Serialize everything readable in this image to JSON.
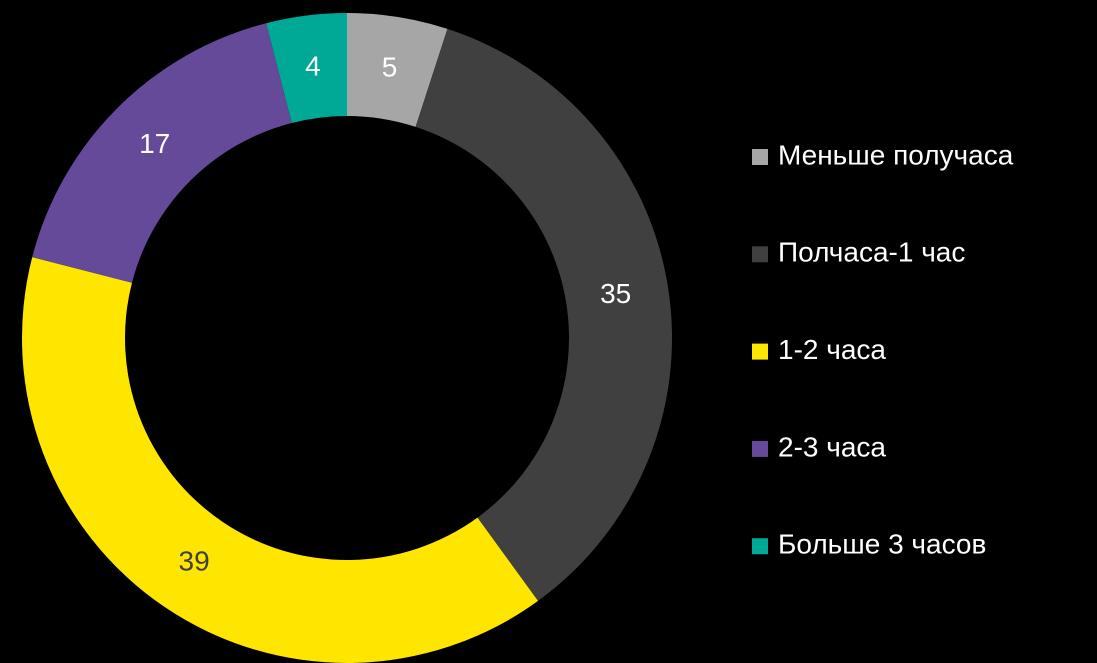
{
  "chart_data": {
    "type": "donut",
    "categories": [
      "Меньше получаса",
      "Полчаса-1 час",
      "1-2 часа",
      "2-3 часа",
      "Больше 3 часов"
    ],
    "values": [
      5,
      35,
      39,
      17,
      4
    ],
    "colors": [
      "#a6a6a6",
      "#404040",
      "#ffe600",
      "#654a9a",
      "#00a896"
    ],
    "label_colors": [
      "#ffffff",
      "#ffffff",
      "#404040",
      "#ffffff",
      "#ffffff"
    ],
    "legend": "right"
  }
}
